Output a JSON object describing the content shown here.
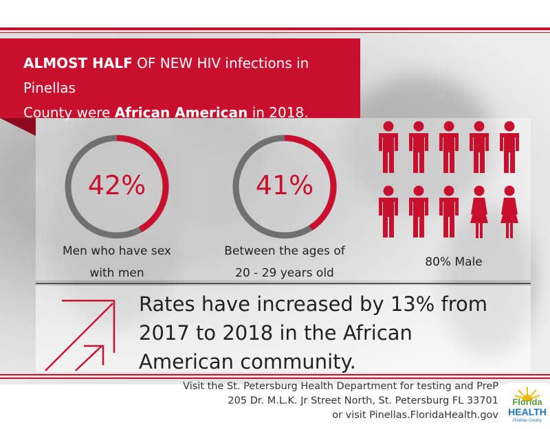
{
  "colors": {
    "accent": "#c8102e",
    "ring_track": "#707070",
    "text": "#222222"
  },
  "header": {
    "line1_bold": "ALMOST HALF",
    "line1_rest": "OF NEW HIV infections in Pinellas",
    "line2_start": "County were",
    "line2_bold": "African American",
    "line2_end": "in 2018."
  },
  "stats": [
    {
      "value": "42%",
      "fraction": 0.42,
      "caption_line1": "Men who have sex",
      "caption_line2": "with men"
    },
    {
      "value": "41%",
      "fraction": 0.41,
      "caption_line1": "Between the ages of",
      "caption_line2": "20 - 29 years old"
    }
  ],
  "gender": {
    "caption": "80% Male",
    "figures": [
      "male",
      "male",
      "male",
      "male",
      "male",
      "male",
      "male",
      "male",
      "female",
      "female"
    ]
  },
  "rates": {
    "line1": "Rates have increased by 13% from",
    "line2": "2017 to 2018  in the African",
    "line3": "American community."
  },
  "footer": {
    "line1": "Visit the St. Petersburg Health Department for testing and PreP",
    "line2": "205 Dr. M.L.K. Jr Street North, St. Petersburg FL 33701",
    "line3": "or visit Pinellas.FloridaHealth.gov"
  },
  "logo": {
    "word1": "Florida",
    "word2": "HEALTH",
    "word3": "Pinellas County"
  }
}
